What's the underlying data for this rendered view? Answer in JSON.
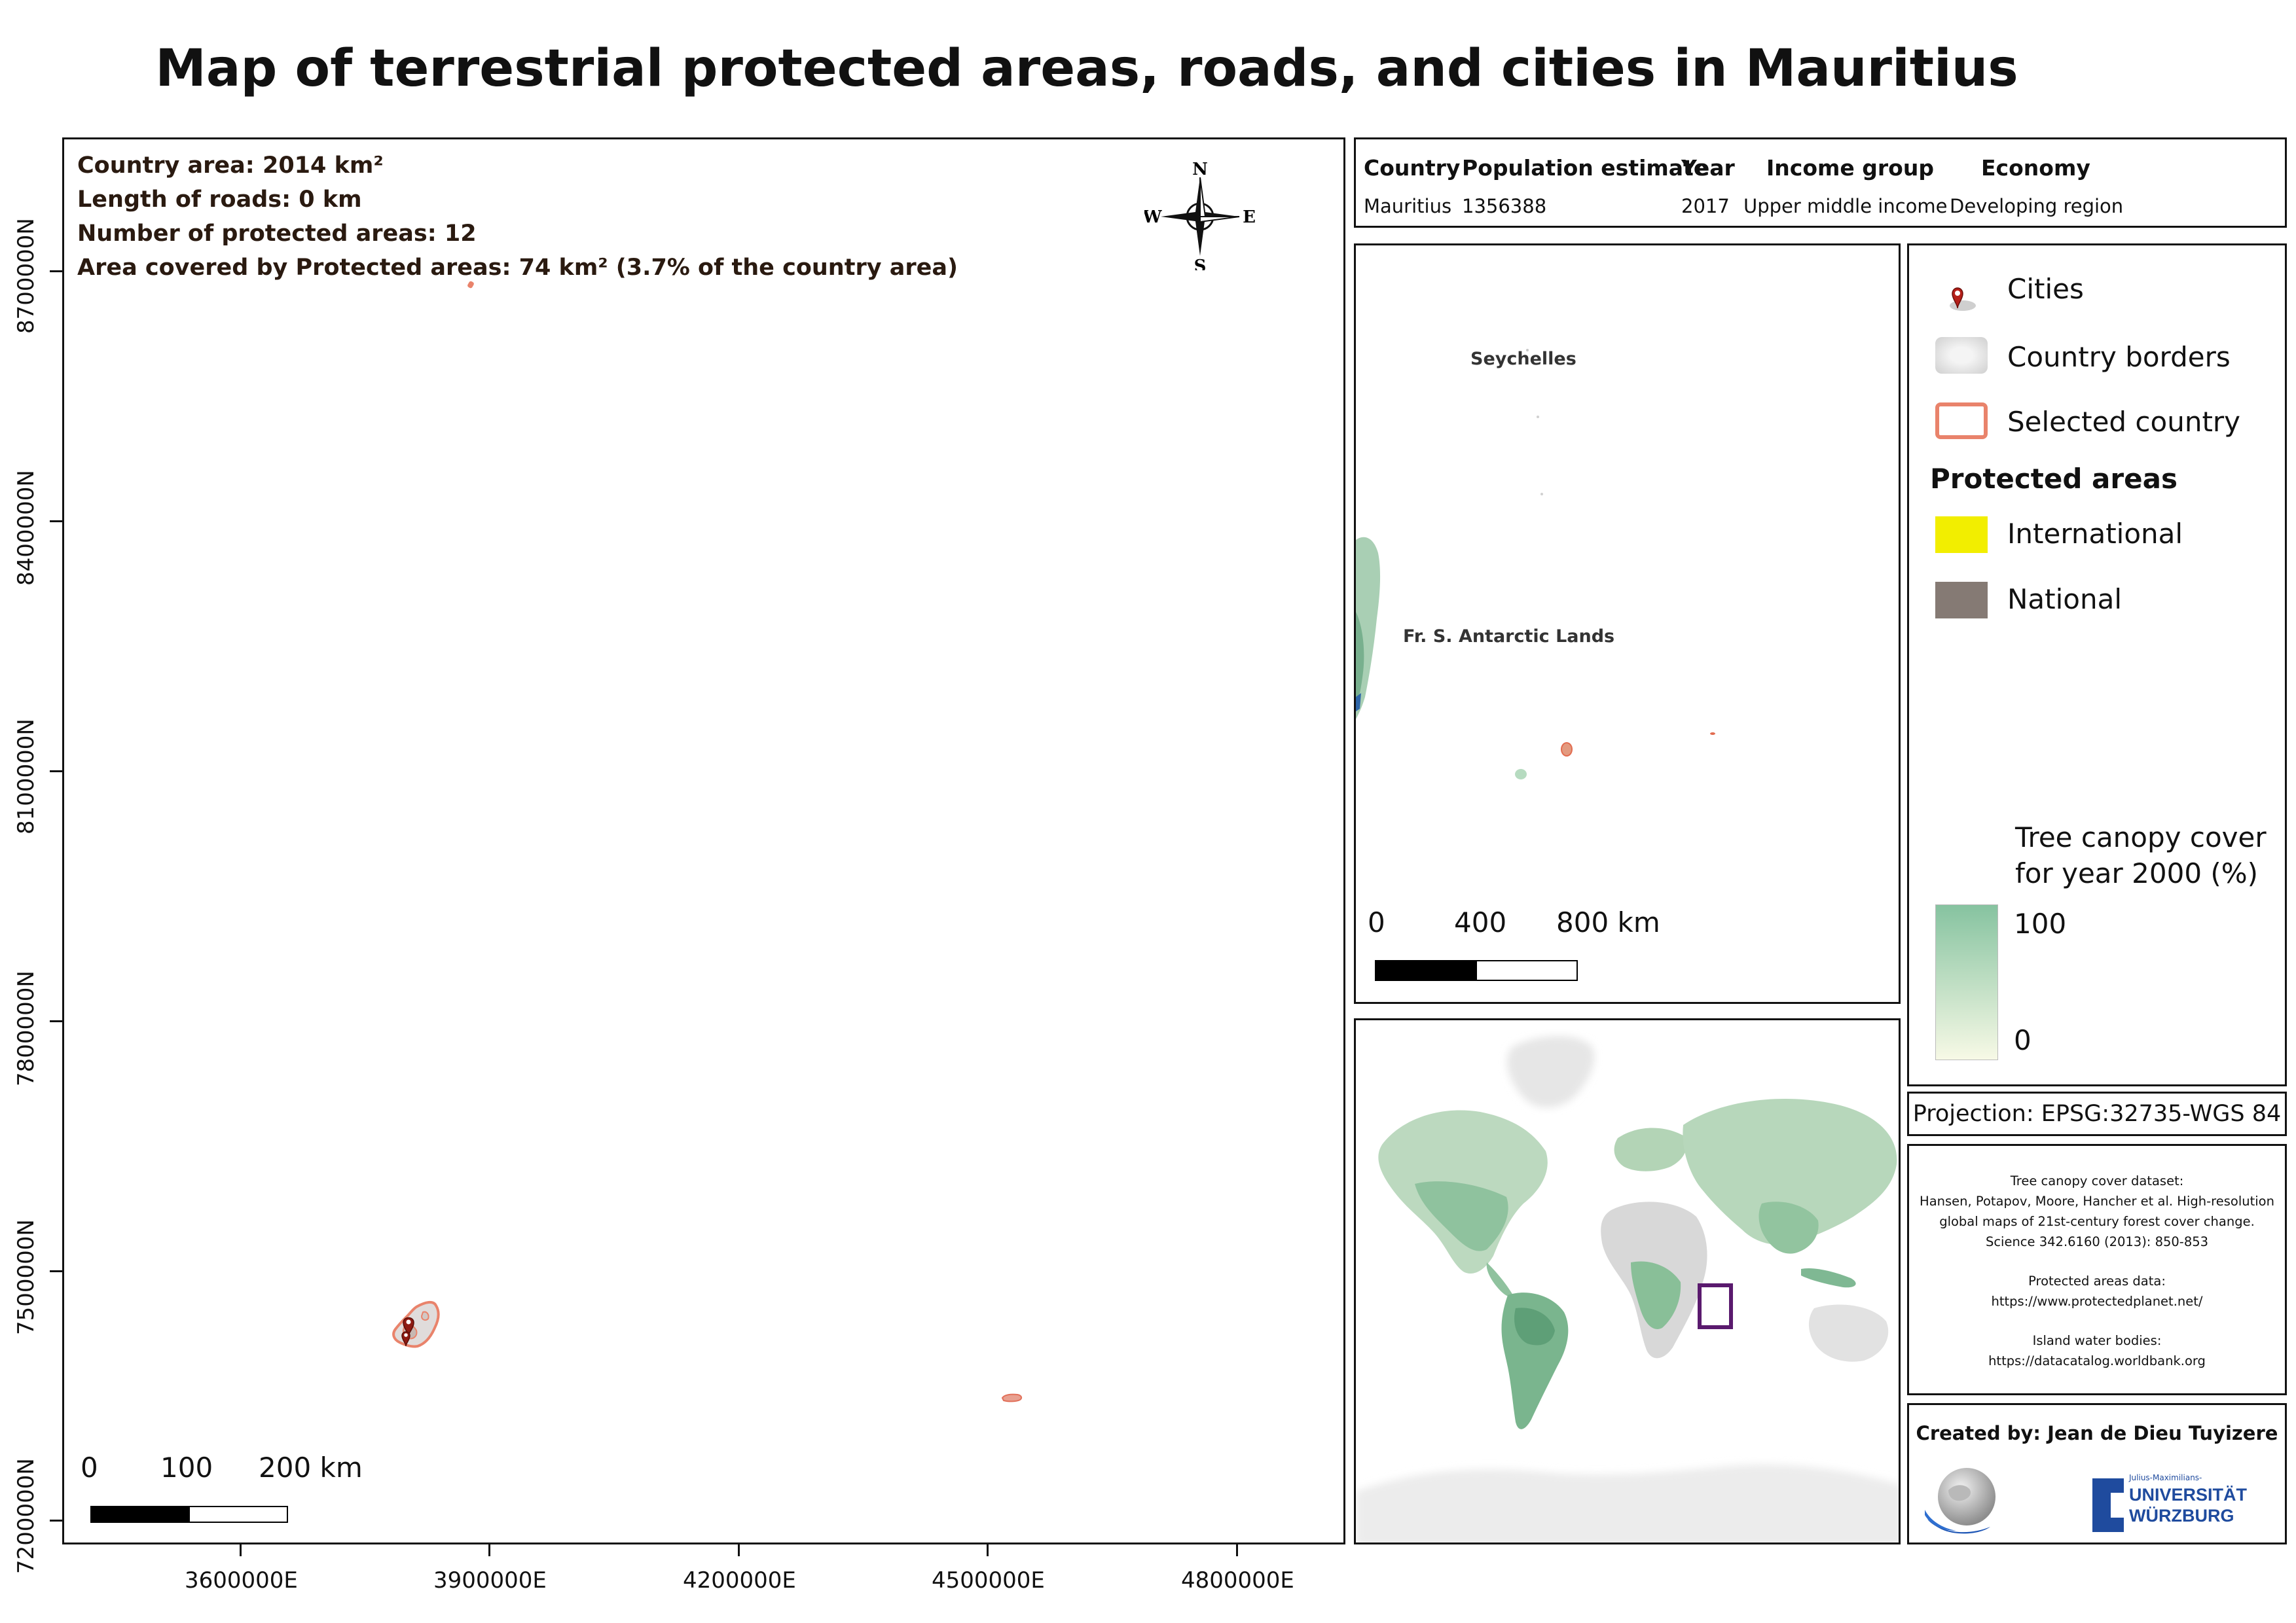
{
  "title": "Map of terrestrial protected areas, roads, and cities in Mauritius",
  "main_map": {
    "stats": [
      "Country area: 2014 km²",
      "Length of roads: 0 km",
      "Number of protected areas: 12",
      "Area covered by Protected areas: 74 km² (3.7% of the country area)"
    ],
    "y_ticks": [
      "8700000N",
      "8400000N",
      "8100000N",
      "7800000N",
      "7500000N",
      "7200000N"
    ],
    "x_ticks": [
      "3600000E",
      "3900000E",
      "4200000E",
      "4500000E",
      "4800000E"
    ],
    "scale_labels": [
      "0",
      "100",
      "200 km"
    ],
    "compass": {
      "n": "N",
      "s": "S",
      "e": "E",
      "w": "W"
    }
  },
  "info_table": {
    "headers": [
      "Country",
      "Population estimate",
      "Year",
      "Income group",
      "Economy"
    ],
    "values": [
      "Mauritius",
      "1356388",
      "2017",
      "Upper middle income",
      "Developing region"
    ]
  },
  "region_map": {
    "labels": [
      "Seychelles",
      "Fr. S. Antarctic Lands"
    ],
    "scale_labels": [
      "0",
      "400",
      "800 km"
    ]
  },
  "legend": {
    "cities": "Cities",
    "country_borders": "Country borders",
    "selected_country": "Selected country",
    "protected_areas_heading": "Protected areas",
    "international": "International",
    "national": "National",
    "tree_canopy_title_1": "Tree canopy cover",
    "tree_canopy_title_2": "for year 2000 (%)",
    "tree_max": "100",
    "tree_min": "0",
    "colors": {
      "international": "#f2ee00",
      "national": "#857a74",
      "selected_border": "#e9836b",
      "tree_high": "#86c3a0",
      "tree_low": "#f7f9e6"
    }
  },
  "projection": "Projection: EPSG:32735-WGS 84",
  "credits": [
    "Tree canopy cover dataset:",
    "Hansen, Potapov, Moore, Hancher et al. High-resolution",
    "global maps of 21st-century forest cover change.",
    "Science 342.6160 (2013): 850-853",
    "",
    "Protected areas data:",
    "https://www.protectedplanet.net/",
    "",
    "Island water bodies:",
    "https://datacatalog.worldbank.org"
  ],
  "creator": {
    "created_by": "Created by: Jean de Dieu Tuyizere",
    "uni_small": "Julius-Maximilians-",
    "uni_line1": "UNIVERSITÄT",
    "uni_line2": "WÜRZBURG"
  }
}
